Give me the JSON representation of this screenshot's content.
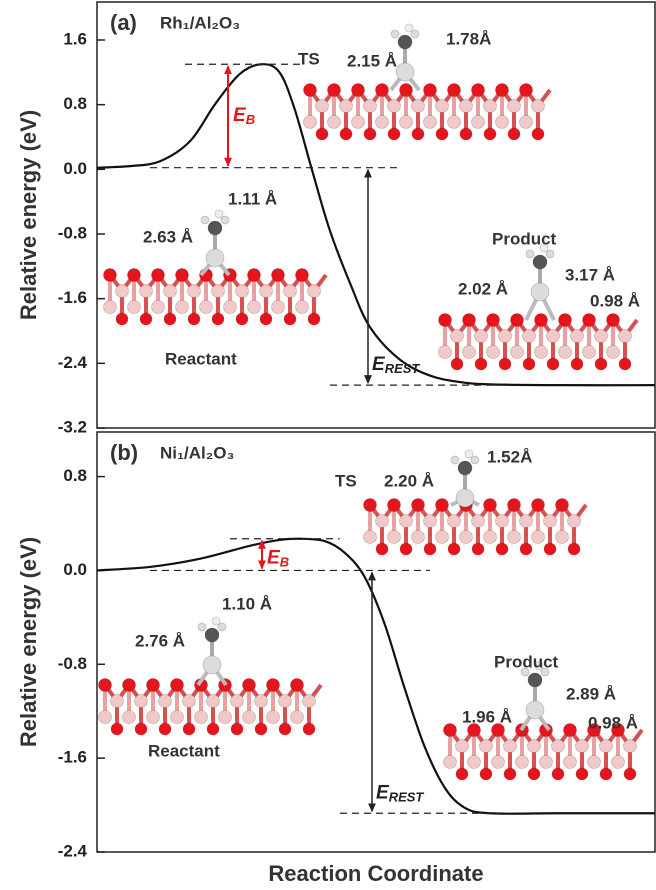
{
  "chart_data": [
    {
      "type": "line",
      "panel_label": "(a)",
      "title": "Rh₁/Al₂O₃",
      "ylabel": "Relative energy (eV)",
      "xlim": [
        0,
        1
      ],
      "ylim": [
        -3.2,
        2.07
      ],
      "yticks": [
        -3.2,
        -2.4,
        -1.6,
        -0.8,
        {
          "value": 0,
          "label": "0.0"
        },
        0.8,
        1.6
      ],
      "x": [
        0,
        0.059,
        0.113,
        0.167,
        0.211,
        0.256,
        0.295,
        0.327,
        0.354,
        0.385,
        0.417,
        0.453,
        0.489,
        0.542,
        0.596,
        0.649,
        0.703,
        0.828,
        1
      ],
      "values": [
        0.02,
        0.04,
        0.1,
        0.35,
        0.8,
        1.18,
        1.3,
        1.2,
        0.75,
        0.0,
        -0.75,
        -1.4,
        -1.95,
        -2.35,
        -2.55,
        -2.63,
        -2.66,
        -2.67,
        -2.67
      ],
      "color": "#111111",
      "barrier_color": "#e8141c",
      "barrier_label": {
        "text": "E",
        "sub": "B"
      },
      "reaction_label": {
        "text": "E",
        "sub": "REST"
      },
      "annotations": [
        "TS",
        "2.15 Å",
        "1.78Å",
        "1.11 Å",
        "2.63 Å",
        "Reactant",
        "Product",
        "2.02 Å",
        "3.17 Å",
        "0.98 Å"
      ]
    },
    {
      "type": "line",
      "panel_label": "(b)",
      "title": "Ni₁/Al₂O₃",
      "ylabel": "Relative energy (eV)",
      "xlabel": "Reaction Coordinate",
      "xlim": [
        0,
        1
      ],
      "ylim": [
        -2.4,
        1.18
      ],
      "yticks": [
        -2.4,
        -1.6,
        -0.8,
        {
          "value": 0,
          "label": "0.0"
        },
        0.8
      ],
      "x": [
        0,
        0.095,
        0.185,
        0.274,
        0.327,
        0.363,
        0.408,
        0.444,
        0.479,
        0.515,
        0.551,
        0.587,
        0.623,
        0.658,
        0.703,
        0.828,
        1
      ],
      "values": [
        0.0,
        0.03,
        0.1,
        0.21,
        0.26,
        0.27,
        0.25,
        0.15,
        -0.05,
        -0.45,
        -1.0,
        -1.5,
        -1.85,
        -2.02,
        -2.07,
        -2.07,
        -2.07
      ],
      "color": "#111111",
      "barrier_color": "#e8141c",
      "barrier_label": {
        "text": "E",
        "sub": "B"
      },
      "reaction_label": {
        "text": "E",
        "sub": "REST"
      },
      "annotations": [
        "TS",
        "2.20 Å",
        "1.52Å",
        "1.10 Å",
        "2.76 Å",
        "Reactant",
        "Product",
        "1.96 Å",
        "2.89 Å",
        "0.98 Å"
      ]
    }
  ]
}
